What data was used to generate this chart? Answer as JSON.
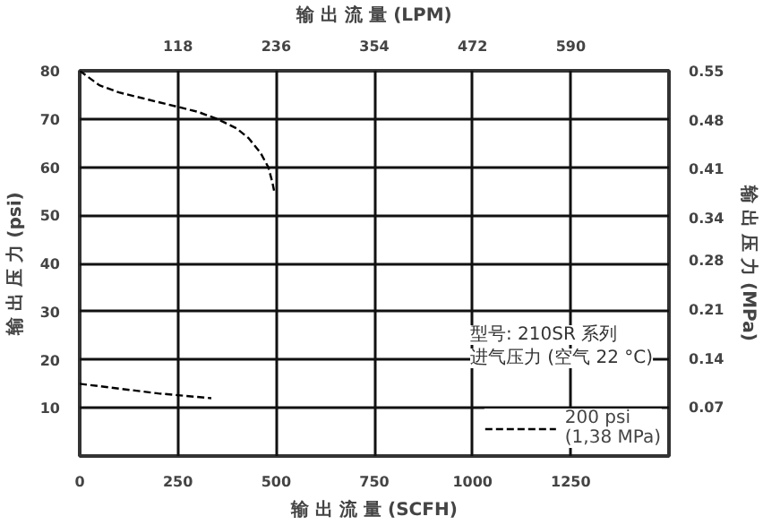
{
  "chart_data": {
    "type": "line",
    "xlabel": "输 出 流 量 (SCFH)",
    "x2label": "输 出 流 量 (LPM)",
    "ylabel": "输 出 压 力 (psi)",
    "y2label": "输 出 压 力 (MPa)",
    "annotations": [
      "型号: 210SR 系列",
      "进气压力 (空气 22 °C)"
    ],
    "xlim": [
      0,
      1500
    ],
    "xticks": [
      0,
      250,
      500,
      750,
      1000,
      1250
    ],
    "x2lim": [
      0,
      708
    ],
    "x2ticks": [
      118,
      236,
      354,
      472,
      590
    ],
    "ylim": [
      0,
      80
    ],
    "yticks": [
      10,
      20,
      30,
      40,
      50,
      60,
      70,
      80
    ],
    "y2lim": [
      0,
      0.55
    ],
    "y2ticks": [
      0.07,
      0.14,
      0.21,
      0.28,
      0.34,
      0.41,
      0.48,
      0.55
    ],
    "grid": true,
    "legend": "bottom right",
    "line_style": "dashed",
    "marker": "none",
    "series": [
      {
        "name": "200 psi\n(1,38 MPa)",
        "color": "#000000",
        "x": [
          0,
          50,
          100,
          175,
          250,
          300,
          350,
          400,
          430,
          460,
          480,
          490,
          495
        ],
        "values": [
          80,
          77,
          75.5,
          74,
          72.5,
          71.5,
          70,
          68,
          66,
          63,
          60,
          57,
          55
        ]
      },
      {
        "color": "#000000",
        "x": [
          0,
          100,
          200,
          335
        ],
        "values": [
          15,
          14,
          13,
          12
        ]
      }
    ]
  }
}
